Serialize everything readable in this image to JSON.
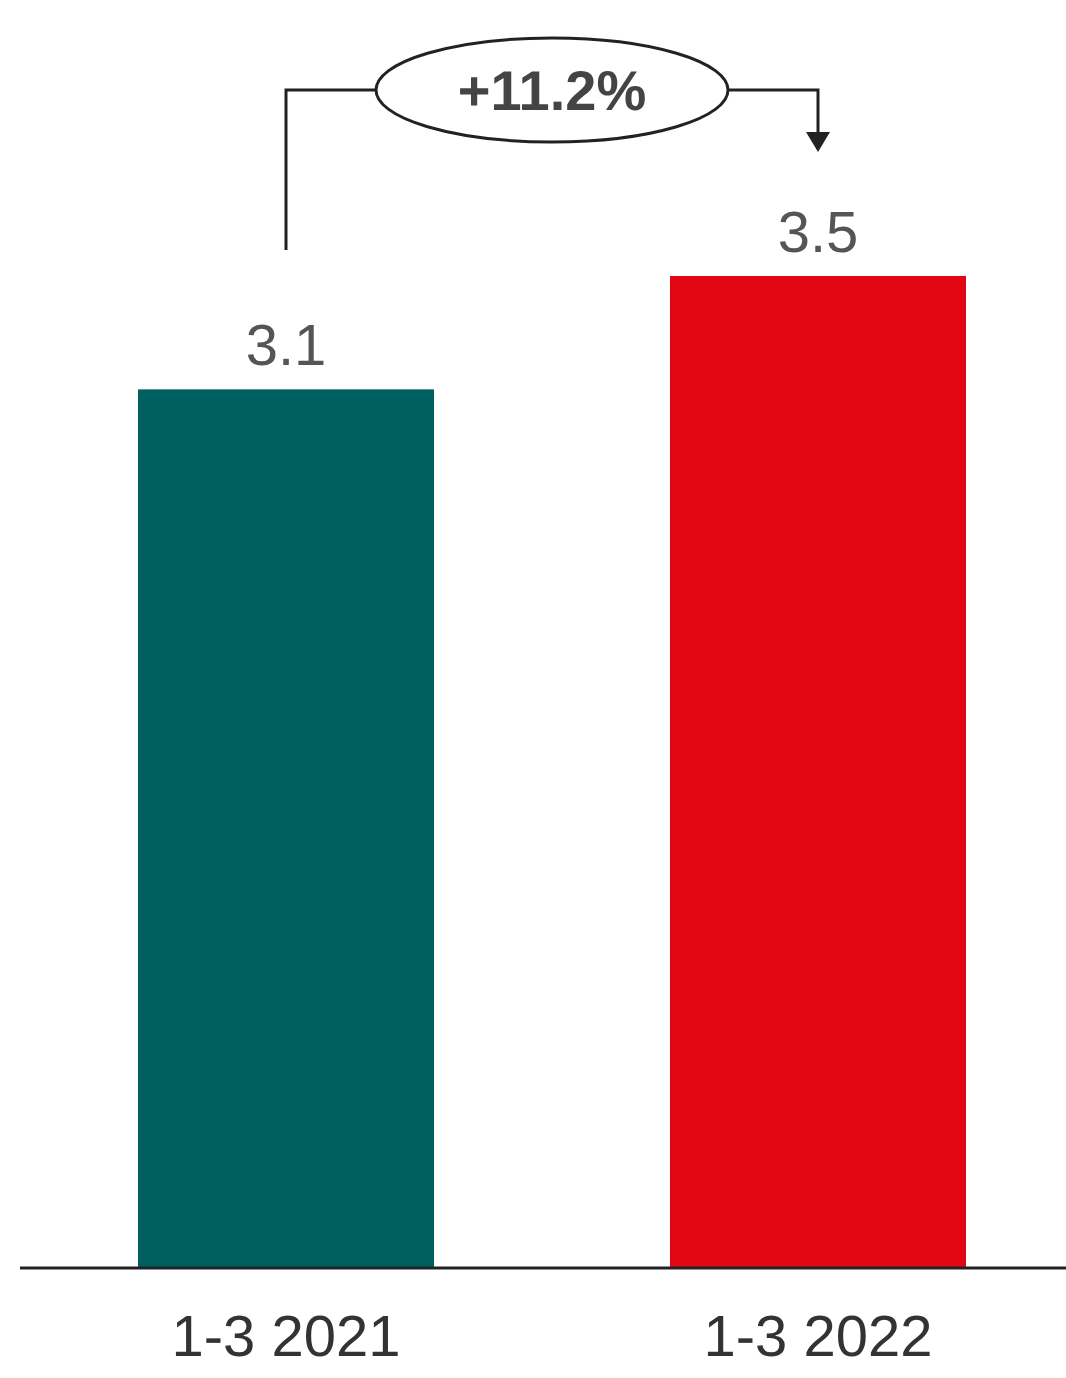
{
  "chart_data": {
    "type": "bar",
    "categories": [
      "1-3 2021",
      "1-3 2022"
    ],
    "values": [
      3.1,
      3.5
    ],
    "colors": [
      "#005f5f",
      "#e30613"
    ],
    "data_labels": true,
    "annotations": [
      "+11.2%"
    ]
  }
}
